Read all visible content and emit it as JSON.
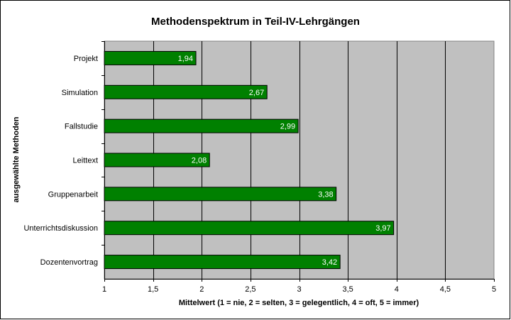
{
  "chart_data": {
    "type": "bar",
    "orientation": "horizontal",
    "title": "Methodenspektrum in Teil-IV-Lehrgängen",
    "xlabel": "Mittelwert (1 = nie, 2 = selten, 3 = gelegentlich, 4 = oft, 5 = immer)",
    "ylabel": "ausgewählte Methoden",
    "categories": [
      "Projekt",
      "Simulation",
      "Fallstudie",
      "Leittext",
      "Gruppenarbeit",
      "Unterrichtsdiskussion",
      "Dozentenvortrag"
    ],
    "values": [
      1.94,
      2.67,
      2.99,
      2.08,
      3.38,
      3.97,
      3.42
    ],
    "value_labels": [
      "1,94",
      "2,67",
      "2,99",
      "2,08",
      "3,38",
      "3,97",
      "3,42"
    ],
    "xlim": [
      1,
      5
    ],
    "xticks": [
      1,
      1.5,
      2,
      2.5,
      3,
      3.5,
      4,
      4.5,
      5
    ],
    "xtick_labels": [
      "1",
      "1,5",
      "2",
      "2,5",
      "3",
      "3,5",
      "4",
      "4,5",
      "5"
    ],
    "grid": "vertical",
    "legend": "none",
    "colors": {
      "bar_fill": "#008000",
      "bar_stroke": "#000000",
      "plot_background": "#c0c0c0",
      "gridline": "#000000",
      "data_label": "#ffffff"
    }
  }
}
